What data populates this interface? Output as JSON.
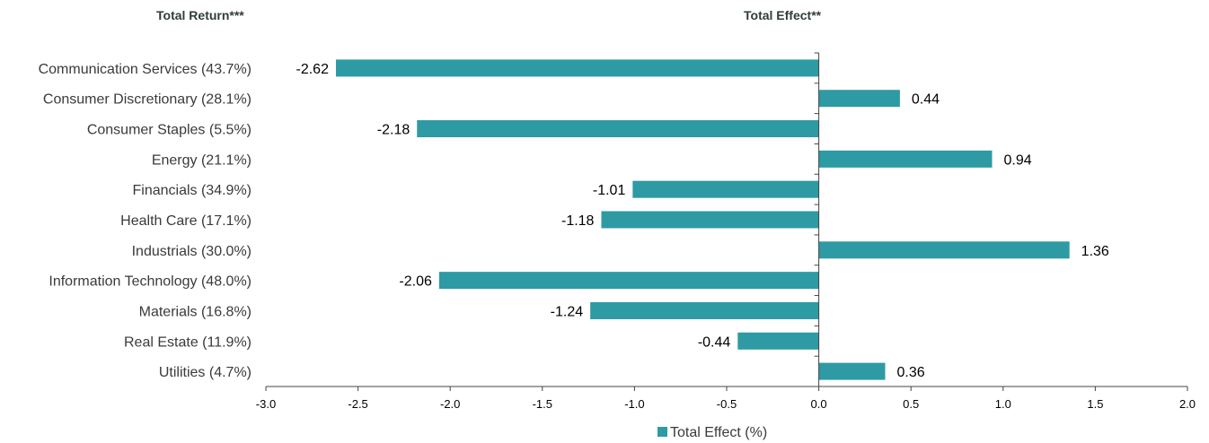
{
  "headers": {
    "left": "Total Return***",
    "right": "Total Effect**"
  },
  "colors": {
    "bar": "#2e9aa4",
    "axis": "#444444"
  },
  "chart_data": {
    "type": "bar",
    "orientation": "horizontal",
    "categories": [
      "Communication Services (43.7%)",
      "Consumer Discretionary (28.1%)",
      "Consumer Staples (5.5%)",
      "Energy (21.1%)",
      "Financials (34.9%)",
      "Health Care (17.1%)",
      "Industrials (30.0%)",
      "Information Technology (48.0%)",
      "Materials (16.8%)",
      "Real Estate (11.9%)",
      "Utilities (4.7%)"
    ],
    "series": [
      {
        "name": "Total Effect (%)",
        "values": [
          -2.62,
          0.44,
          -2.18,
          0.94,
          -1.01,
          -1.18,
          1.36,
          -2.06,
          -1.24,
          -0.44,
          0.36
        ],
        "labels": [
          "-2.62",
          "0.44",
          "-2.18",
          "0.94",
          "-1.01",
          "-1.18",
          "1.36",
          "-2.06",
          "-1.24",
          "-0.44",
          "0.36"
        ]
      }
    ],
    "xlim": [
      -3.0,
      2.0
    ],
    "xticks": [
      -3.0,
      -2.5,
      -2.0,
      -1.5,
      -1.0,
      -0.5,
      0.0,
      0.5,
      1.0,
      1.5,
      2.0
    ],
    "xtick_labels": [
      "-3.0",
      "-2.5",
      "-2.0",
      "-1.5",
      "-1.0",
      "-0.5",
      "0.0",
      "0.5",
      "1.0",
      "1.5",
      "2.0"
    ],
    "grid": false,
    "legend_position": "bottom-center"
  }
}
